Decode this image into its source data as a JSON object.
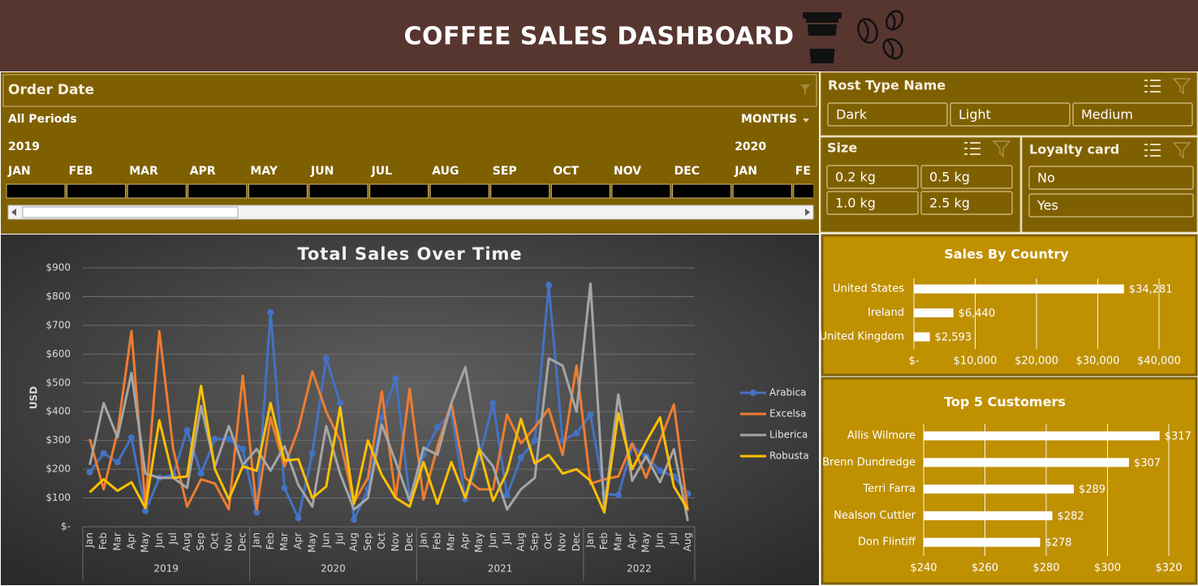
{
  "header": {
    "title": "COFFEE SALES DASHBOARD"
  },
  "timeline": {
    "title": "Order Date",
    "selection": "All Periods",
    "level": "MONTHS",
    "years": [
      "2019",
      "2020"
    ],
    "months": [
      "JAN",
      "FEB",
      "MAR",
      "APR",
      "MAY",
      "JUN",
      "JUL",
      "AUG",
      "SEP",
      "OCT",
      "NOV",
      "DEC",
      "JAN",
      "FE"
    ]
  },
  "slicers": [
    {
      "title": "Rost Type Name",
      "items": [
        "Dark",
        "Light",
        "Medium"
      ]
    },
    {
      "title": "Size",
      "items": [
        "0.2 kg",
        "0.5 kg",
        "1.0 kg",
        "2.5 kg"
      ]
    },
    {
      "title": "Loyalty card",
      "items": [
        "No",
        "Yes"
      ]
    }
  ],
  "chart_data": [
    {
      "type": "line",
      "title": "Total Sales Over Time",
      "y_label": "USD",
      "categories": [
        "Jan",
        "Feb",
        "Mar",
        "Apr",
        "May",
        "Jun",
        "Jul",
        "Aug",
        "Sep",
        "Oct",
        "Nov",
        "Dec",
        "Jan",
        "Feb",
        "Mar",
        "Apr",
        "May",
        "Jun",
        "Jul",
        "Aug",
        "Sep",
        "Oct",
        "Nov",
        "Dec",
        "Jan",
        "Feb",
        "Mar",
        "Apr",
        "May",
        "Jun",
        "Jul",
        "Aug",
        "Sep",
        "Oct",
        "Nov",
        "Dec",
        "Jan",
        "Feb",
        "Mar",
        "Apr",
        "May",
        "Jun",
        "Jul",
        "Aug"
      ],
      "x_groups": [
        "2019",
        "2020",
        "2021",
        "2022"
      ],
      "ylim": [
        0,
        900
      ],
      "yticks": [
        {
          "value": 0,
          "label": "$-"
        },
        {
          "value": 100,
          "label": "$100"
        },
        {
          "value": 200,
          "label": "$200"
        },
        {
          "value": 300,
          "label": "$300"
        },
        {
          "value": 400,
          "label": "$400"
        },
        {
          "value": 500,
          "label": "$500"
        },
        {
          "value": 600,
          "label": "$600"
        },
        {
          "value": 700,
          "label": "$700"
        },
        {
          "value": 800,
          "label": "$800"
        },
        {
          "value": 900,
          "label": "$900"
        }
      ],
      "grid": true,
      "legend": "right",
      "series": [
        {
          "name": "Arabica",
          "color": "#4472c4",
          "markers": true,
          "values": [
            190,
            255,
            225,
            310,
            55,
            170,
            180,
            335,
            185,
            305,
            305,
            270,
            50,
            745,
            135,
            30,
            255,
            585,
            430,
            25,
            130,
            380,
            515,
            100,
            250,
            345,
            395,
            95,
            240,
            430,
            110,
            240,
            300,
            840,
            300,
            325,
            390,
            115,
            110,
            280,
            245,
            195,
            175,
            115
          ]
        },
        {
          "name": "Excelsa",
          "color": "#ed7d31",
          "markers": false,
          "values": [
            305,
            130,
            330,
            680,
            75,
            680,
            270,
            70,
            165,
            150,
            60,
            525,
            60,
            380,
            210,
            340,
            540,
            400,
            300,
            85,
            170,
            470,
            100,
            480,
            95,
            280,
            430,
            170,
            130,
            130,
            390,
            290,
            345,
            410,
            250,
            560,
            150,
            165,
            175,
            290,
            170,
            300,
            425,
            55
          ]
        },
        {
          "name": "Liberica",
          "color": "#a5a5a5",
          "markers": false,
          "values": [
            215,
            430,
            310,
            535,
            185,
            170,
            170,
            135,
            420,
            210,
            350,
            215,
            270,
            195,
            280,
            145,
            70,
            350,
            185,
            60,
            100,
            355,
            225,
            90,
            275,
            250,
            430,
            555,
            270,
            210,
            60,
            130,
            170,
            585,
            560,
            400,
            845,
            60,
            460,
            160,
            245,
            155,
            270,
            20
          ]
        },
        {
          "name": "Robusta",
          "color": "#ffc000",
          "markers": false,
          "values": [
            120,
            165,
            125,
            155,
            65,
            370,
            170,
            175,
            490,
            200,
            95,
            210,
            195,
            430,
            230,
            235,
            100,
            140,
            415,
            80,
            300,
            180,
            100,
            70,
            225,
            80,
            225,
            100,
            270,
            90,
            190,
            375,
            220,
            250,
            185,
            200,
            160,
            50,
            395,
            200,
            295,
            380,
            140,
            60
          ]
        }
      ]
    },
    {
      "type": "bar",
      "orientation": "horizontal",
      "title": "Sales By Country",
      "categories": [
        "United States",
        "Ireland",
        "United Kingdom"
      ],
      "values": [
        34281,
        6440,
        2593
      ],
      "value_labels": [
        "$34,281",
        "$6,440",
        "$2,593"
      ],
      "color": "#ffffff",
      "xlim": [
        0,
        40000
      ],
      "xticks": [
        {
          "value": 0,
          "label": "$-"
        },
        {
          "value": 10000,
          "label": "$10,000"
        },
        {
          "value": 20000,
          "label": "$20,000"
        },
        {
          "value": 30000,
          "label": "$30,000"
        },
        {
          "value": 40000,
          "label": "$40,000"
        }
      ],
      "grid": true
    },
    {
      "type": "bar",
      "orientation": "horizontal",
      "title": "Top 5 Customers",
      "categories": [
        "Allis Wilmore",
        "Brenn Dundredge",
        "Terri Farra",
        "Nealson Cuttler",
        "Don Flintiff"
      ],
      "values": [
        317,
        307,
        289,
        282,
        278
      ],
      "value_labels": [
        "$317",
        "$307",
        "$289",
        "$282",
        "$278"
      ],
      "color": "#ffffff",
      "xlim": [
        240,
        320
      ],
      "xticks": [
        {
          "value": 240,
          "label": "$240"
        },
        {
          "value": 260,
          "label": "$260"
        },
        {
          "value": 280,
          "label": "$280"
        },
        {
          "value": 300,
          "label": "$300"
        },
        {
          "value": 320,
          "label": "$320"
        }
      ],
      "grid": true
    }
  ]
}
